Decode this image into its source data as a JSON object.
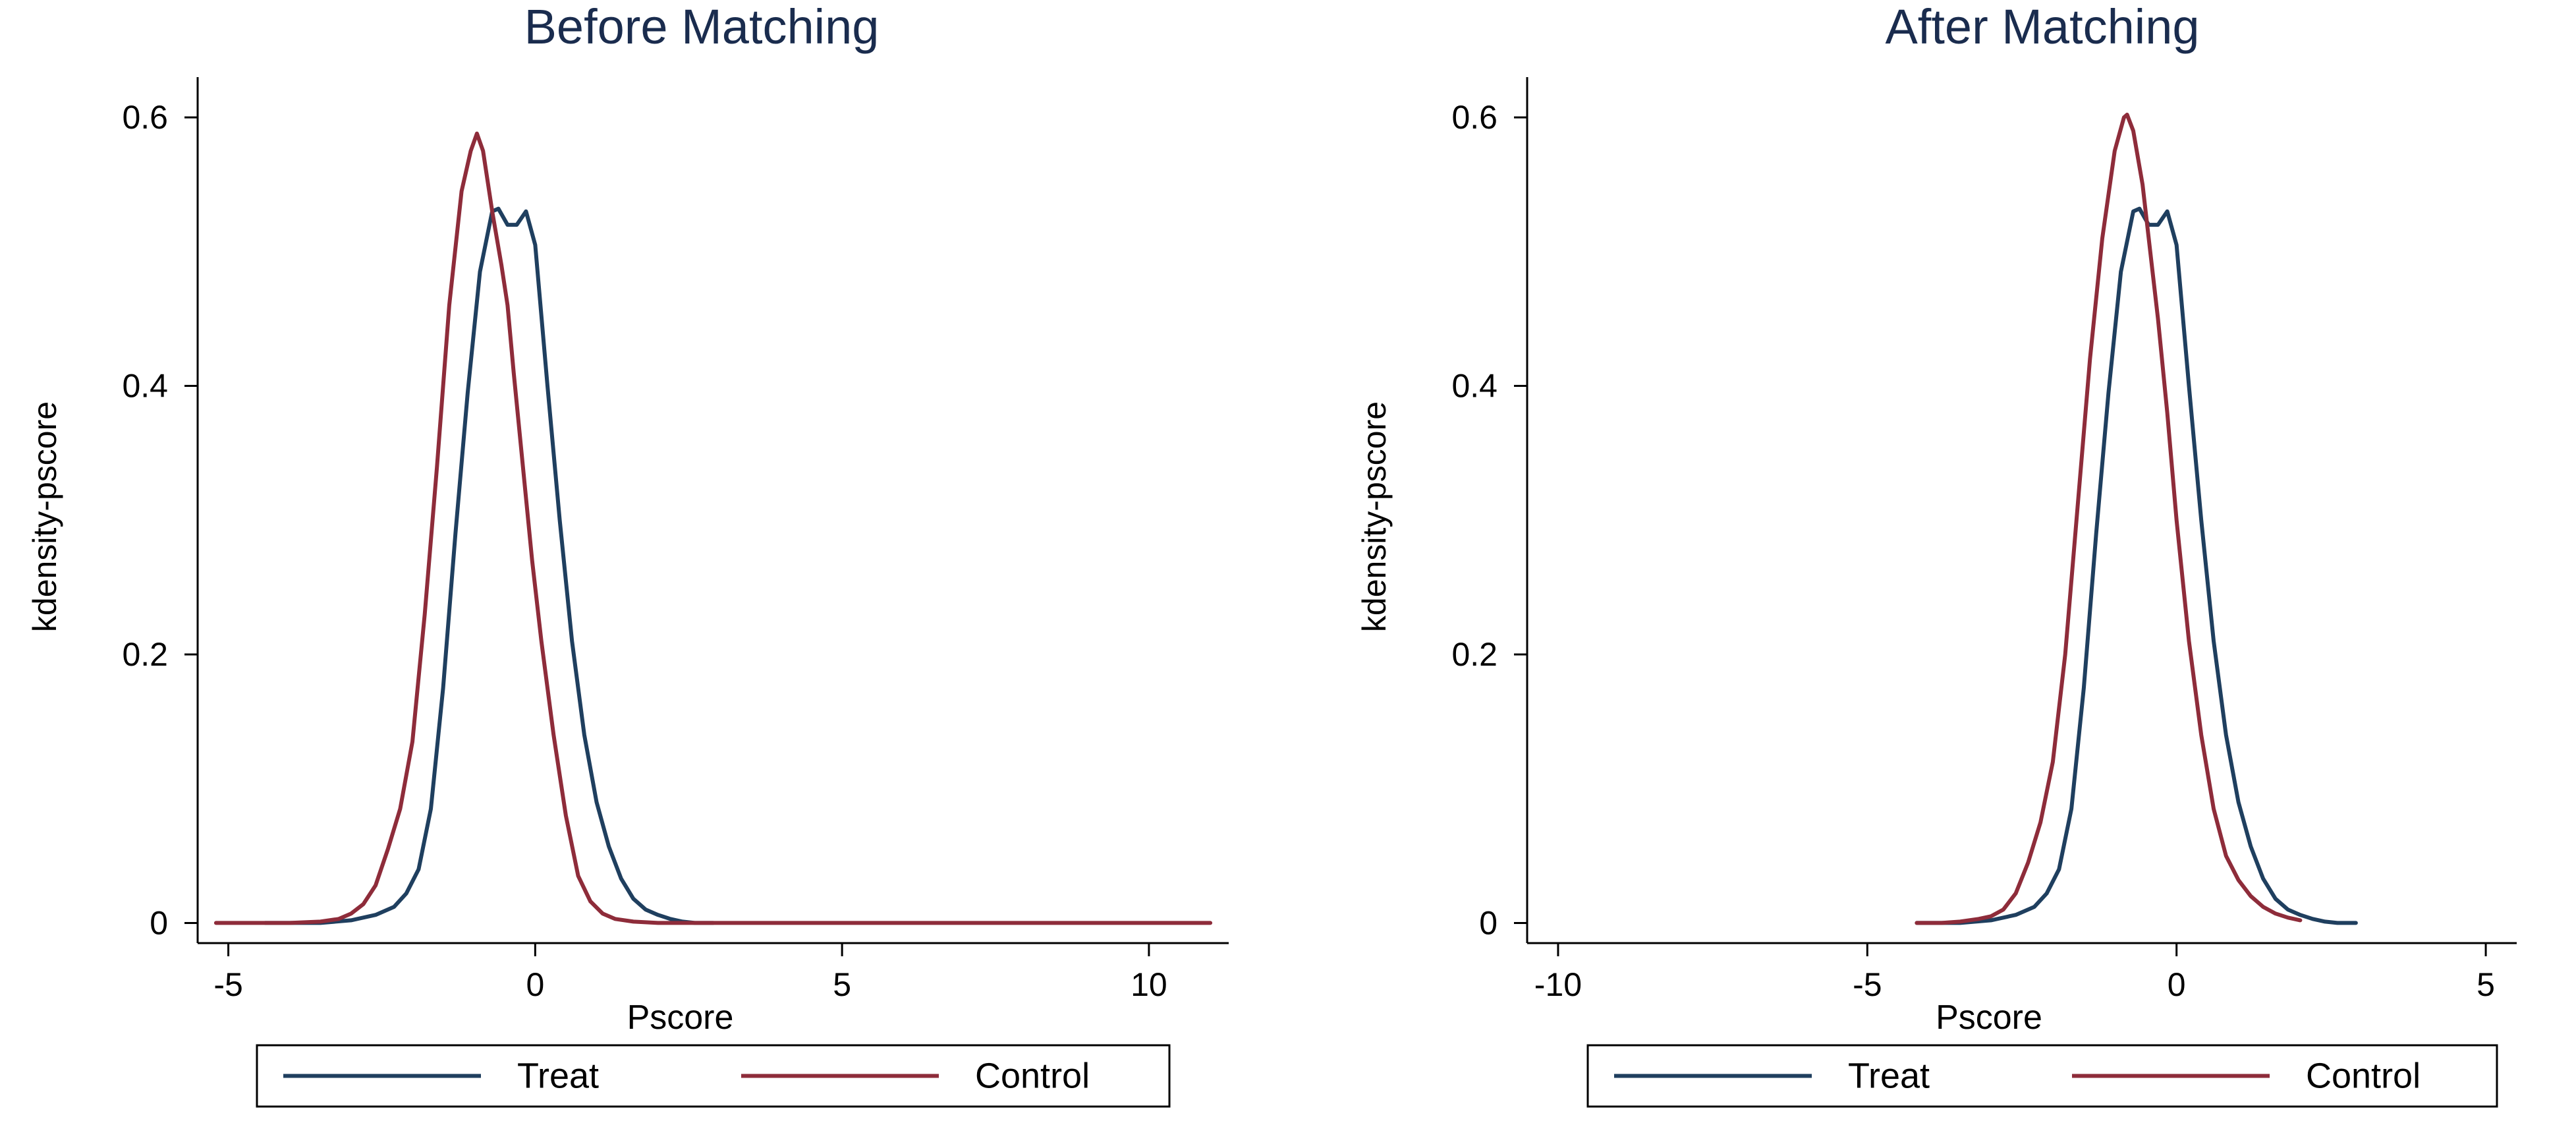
{
  "chart_data": [
    {
      "type": "line",
      "title": "Before Matching",
      "xlabel": "Pscore",
      "ylabel": "kdensity-pscore",
      "xlim": [
        -5.5,
        11.3
      ],
      "ylim": [
        -0.015,
        0.63
      ],
      "xticks": [
        -5,
        0,
        5,
        10
      ],
      "xtick_labels": [
        "-5",
        "0",
        "5",
        "10"
      ],
      "yticks": [
        0,
        0.2,
        0.4,
        0.6
      ],
      "ytick_labels": [
        "0",
        "0.2",
        "0.4",
        "0.6"
      ],
      "grid": false,
      "legend_position": "bottom",
      "series": [
        {
          "name": "Treat",
          "color": "#1f3f5f",
          "x": [
            -4.4,
            -3.5,
            -3.0,
            -2.6,
            -2.3,
            -2.1,
            -1.9,
            -1.7,
            -1.5,
            -1.3,
            -1.1,
            -0.9,
            -0.7,
            -0.6,
            -0.45,
            -0.3,
            -0.15,
            0.0,
            0.2,
            0.4,
            0.6,
            0.8,
            1.0,
            1.2,
            1.4,
            1.6,
            1.8,
            2.0,
            2.2,
            2.4,
            2.6,
            2.9
          ],
          "y": [
            0.0,
            0.0,
            0.002,
            0.006,
            0.012,
            0.022,
            0.04,
            0.085,
            0.175,
            0.29,
            0.395,
            0.485,
            0.53,
            0.532,
            0.52,
            0.52,
            0.53,
            0.505,
            0.4,
            0.3,
            0.21,
            0.14,
            0.09,
            0.057,
            0.033,
            0.018,
            0.01,
            0.006,
            0.003,
            0.001,
            0.0,
            0.0
          ]
        },
        {
          "name": "Control",
          "color": "#8e2c3a",
          "x": [
            -5.2,
            -4.5,
            -4.0,
            -3.5,
            -3.2,
            -3.0,
            -2.8,
            -2.6,
            -2.4,
            -2.2,
            -2.0,
            -1.8,
            -1.6,
            -1.4,
            -1.2,
            -1.05,
            -0.95,
            -0.85,
            -0.7,
            -0.55,
            -0.45,
            -0.35,
            -0.2,
            -0.05,
            0.1,
            0.3,
            0.5,
            0.7,
            0.9,
            1.1,
            1.3,
            1.6,
            2.0,
            3.0,
            6.0,
            11.0
          ],
          "y": [
            0.0,
            0.0,
            0.0,
            0.001,
            0.003,
            0.007,
            0.014,
            0.028,
            0.055,
            0.085,
            0.135,
            0.23,
            0.34,
            0.46,
            0.545,
            0.575,
            0.588,
            0.575,
            0.53,
            0.49,
            0.46,
            0.41,
            0.34,
            0.27,
            0.21,
            0.14,
            0.08,
            0.035,
            0.016,
            0.007,
            0.003,
            0.001,
            0.0,
            0.0,
            0.0,
            0.0
          ]
        }
      ]
    },
    {
      "type": "line",
      "title": "After Matching",
      "xlabel": "Pscore",
      "ylabel": "kdensity-pscore",
      "xlim": [
        -10.5,
        5.5
      ],
      "ylim": [
        -0.015,
        0.63
      ],
      "xticks": [
        -10,
        -5,
        0,
        5
      ],
      "xtick_labels": [
        "-10",
        "-5",
        "0",
        "5"
      ],
      "yticks": [
        0,
        0.2,
        0.4,
        0.6
      ],
      "ytick_labels": [
        "0",
        "0.2",
        "0.4",
        "0.6"
      ],
      "grid": false,
      "legend_position": "bottom",
      "series": [
        {
          "name": "Treat",
          "color": "#1f3f5f",
          "x": [
            -4.2,
            -3.5,
            -3.0,
            -2.6,
            -2.3,
            -2.1,
            -1.9,
            -1.7,
            -1.5,
            -1.3,
            -1.1,
            -0.9,
            -0.7,
            -0.6,
            -0.45,
            -0.3,
            -0.15,
            0.0,
            0.2,
            0.4,
            0.6,
            0.8,
            1.0,
            1.2,
            1.4,
            1.6,
            1.8,
            2.0,
            2.2,
            2.4,
            2.6,
            2.9
          ],
          "y": [
            0.0,
            0.0,
            0.002,
            0.006,
            0.012,
            0.022,
            0.04,
            0.085,
            0.175,
            0.29,
            0.395,
            0.485,
            0.53,
            0.532,
            0.52,
            0.52,
            0.53,
            0.505,
            0.4,
            0.3,
            0.21,
            0.14,
            0.09,
            0.057,
            0.033,
            0.018,
            0.01,
            0.006,
            0.003,
            0.001,
            0.0,
            0.0
          ]
        },
        {
          "name": "Control",
          "color": "#8e2c3a",
          "x": [
            -4.2,
            -3.8,
            -3.5,
            -3.2,
            -3.0,
            -2.8,
            -2.6,
            -2.4,
            -2.2,
            -2.0,
            -1.8,
            -1.6,
            -1.4,
            -1.2,
            -1.0,
            -0.85,
            -0.8,
            -0.7,
            -0.55,
            -0.4,
            -0.3,
            -0.15,
            0.0,
            0.2,
            0.4,
            0.6,
            0.8,
            1.0,
            1.2,
            1.4,
            1.6,
            1.8,
            2.0
          ],
          "y": [
            0.0,
            0.0,
            0.001,
            0.003,
            0.005,
            0.01,
            0.022,
            0.045,
            0.075,
            0.12,
            0.2,
            0.31,
            0.42,
            0.51,
            0.575,
            0.6,
            0.602,
            0.59,
            0.55,
            0.49,
            0.45,
            0.38,
            0.3,
            0.21,
            0.14,
            0.085,
            0.05,
            0.032,
            0.02,
            0.012,
            0.007,
            0.004,
            0.002
          ]
        }
      ]
    }
  ]
}
